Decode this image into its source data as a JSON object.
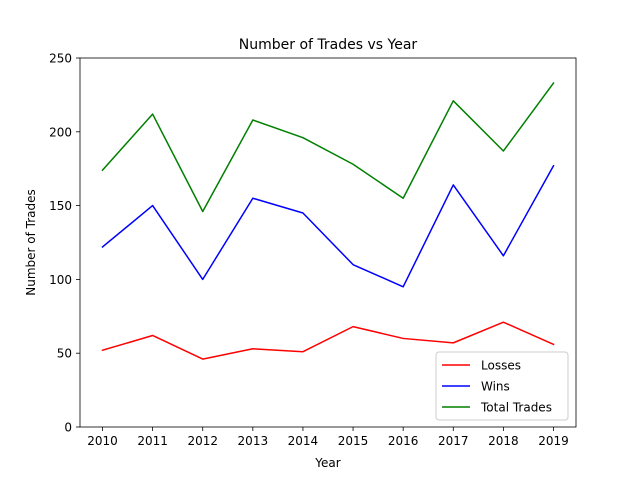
{
  "chart_data": {
    "type": "line",
    "title": "Number of Trades vs Year",
    "xlabel": "Year",
    "ylabel": "Number of Trades",
    "categories": [
      "2010",
      "2011",
      "2012",
      "2013",
      "2014",
      "2015",
      "2016",
      "2017",
      "2018",
      "2019"
    ],
    "x_ticks": [
      "2010",
      "2011",
      "2012",
      "2013",
      "2014",
      "2015",
      "2016",
      "2017",
      "2018",
      "2019"
    ],
    "y_ticks": [
      "0",
      "50",
      "100",
      "150",
      "200",
      "250"
    ],
    "ylim": [
      0,
      250
    ],
    "grid": false,
    "legend_position": "lower-right",
    "series": [
      {
        "name": "Losses",
        "color": "#ff0000",
        "values": [
          52,
          62,
          46,
          53,
          51,
          68,
          60,
          57,
          71,
          56
        ]
      },
      {
        "name": "Wins",
        "color": "#0000ff",
        "values": [
          122,
          150,
          100,
          155,
          145,
          110,
          95,
          164,
          116,
          177
        ]
      },
      {
        "name": "Total Trades",
        "color": "#008000",
        "values": [
          174,
          212,
          146,
          208,
          196,
          178,
          155,
          221,
          187,
          233
        ]
      }
    ]
  }
}
